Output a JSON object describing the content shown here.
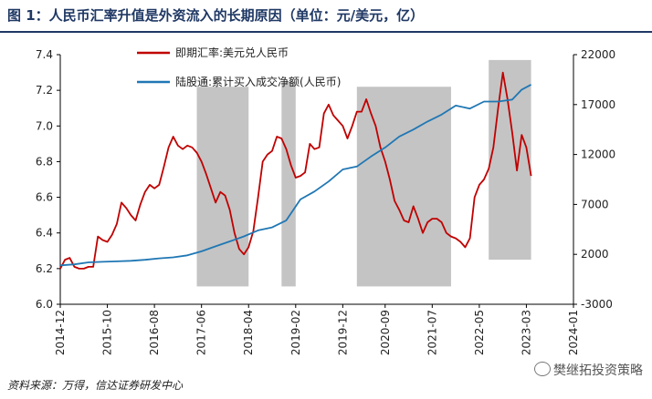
{
  "title": "图 1：人民币汇率升值是外资流入的长期原因（单位：元/美元，亿）",
  "source": "资料来源：万得，信达证券研发中心",
  "watermark": "樊继拓投资策略",
  "chart_data": {
    "type": "line",
    "title": "",
    "xlabel": "",
    "ylabel": "",
    "x_range": [
      "2014-12",
      "2024-01"
    ],
    "x_ticks": [
      "2014-12",
      "2015-10",
      "2016-08",
      "2017-06",
      "2018-04",
      "2019-02",
      "2019-12",
      "2020-09",
      "2021-07",
      "2022-05",
      "2023-03",
      "2024-01"
    ],
    "y_left": {
      "range": [
        6.0,
        7.4
      ],
      "ticks": [
        "6.0",
        "6.2",
        "6.4",
        "6.6",
        "6.8",
        "7.0",
        "7.2",
        "7.4"
      ]
    },
    "y_right": {
      "range": [
        -3000,
        22000
      ],
      "ticks": [
        "-3000",
        "2000",
        "7000",
        "12000",
        "17000",
        "22000"
      ]
    },
    "legend_position": "top-center",
    "grid": false,
    "shaded_periods": [
      {
        "start": "2017-05",
        "end": "2018-04",
        "y_low": 6.1,
        "y_high": 7.22
      },
      {
        "start": "2018-11",
        "end": "2019-02",
        "y_low": 6.1,
        "y_high": 7.25
      },
      {
        "start": "2020-03",
        "end": "2021-11",
        "y_low": 6.1,
        "y_high": 7.22
      },
      {
        "start": "2022-07",
        "end": "2023-04",
        "y_low": 6.25,
        "y_high": 7.37
      }
    ],
    "series": [
      {
        "name": "即期汇率:美元兑人民币",
        "axis": "left",
        "color": "#c00000",
        "points": [
          [
            "2014-12",
            6.2
          ],
          [
            "2015-01",
            6.25
          ],
          [
            "2015-02",
            6.26
          ],
          [
            "2015-03",
            6.21
          ],
          [
            "2015-04",
            6.2
          ],
          [
            "2015-05",
            6.2
          ],
          [
            "2015-06",
            6.21
          ],
          [
            "2015-07",
            6.21
          ],
          [
            "2015-08",
            6.38
          ],
          [
            "2015-09",
            6.36
          ],
          [
            "2015-10",
            6.35
          ],
          [
            "2015-11",
            6.39
          ],
          [
            "2015-12",
            6.45
          ],
          [
            "2016-01",
            6.57
          ],
          [
            "2016-02",
            6.54
          ],
          [
            "2016-03",
            6.5
          ],
          [
            "2016-04",
            6.47
          ],
          [
            "2016-05",
            6.56
          ],
          [
            "2016-06",
            6.63
          ],
          [
            "2016-07",
            6.67
          ],
          [
            "2016-08",
            6.65
          ],
          [
            "2016-09",
            6.67
          ],
          [
            "2016-10",
            6.77
          ],
          [
            "2016-11",
            6.88
          ],
          [
            "2016-12",
            6.94
          ],
          [
            "2017-01",
            6.89
          ],
          [
            "2017-02",
            6.87
          ],
          [
            "2017-03",
            6.89
          ],
          [
            "2017-04",
            6.88
          ],
          [
            "2017-05",
            6.85
          ],
          [
            "2017-06",
            6.8
          ],
          [
            "2017-07",
            6.73
          ],
          [
            "2017-08",
            6.65
          ],
          [
            "2017-09",
            6.57
          ],
          [
            "2017-10",
            6.63
          ],
          [
            "2017-11",
            6.61
          ],
          [
            "2017-12",
            6.53
          ],
          [
            "2018-01",
            6.4
          ],
          [
            "2018-02",
            6.31
          ],
          [
            "2018-03",
            6.28
          ],
          [
            "2018-04",
            6.32
          ],
          [
            "2018-05",
            6.41
          ],
          [
            "2018-06",
            6.6
          ],
          [
            "2018-07",
            6.8
          ],
          [
            "2018-08",
            6.84
          ],
          [
            "2018-09",
            6.86
          ],
          [
            "2018-10",
            6.94
          ],
          [
            "2018-11",
            6.93
          ],
          [
            "2018-12",
            6.87
          ],
          [
            "2019-01",
            6.78
          ],
          [
            "2019-02",
            6.71
          ],
          [
            "2019-03",
            6.72
          ],
          [
            "2019-04",
            6.74
          ],
          [
            "2019-05",
            6.9
          ],
          [
            "2019-06",
            6.87
          ],
          [
            "2019-07",
            6.88
          ],
          [
            "2019-08",
            7.07
          ],
          [
            "2019-09",
            7.12
          ],
          [
            "2019-10",
            7.06
          ],
          [
            "2019-11",
            7.03
          ],
          [
            "2019-12",
            7.0
          ],
          [
            "2020-01",
            6.93
          ],
          [
            "2020-02",
            7.0
          ],
          [
            "2020-03",
            7.08
          ],
          [
            "2020-04",
            7.08
          ],
          [
            "2020-05",
            7.15
          ],
          [
            "2020-06",
            7.07
          ],
          [
            "2020-07",
            7.0
          ],
          [
            "2020-08",
            6.88
          ],
          [
            "2020-09",
            6.8
          ],
          [
            "2020-10",
            6.7
          ],
          [
            "2020-11",
            6.58
          ],
          [
            "2020-12",
            6.53
          ],
          [
            "2021-01",
            6.47
          ],
          [
            "2021-02",
            6.46
          ],
          [
            "2021-03",
            6.55
          ],
          [
            "2021-04",
            6.48
          ],
          [
            "2021-05",
            6.4
          ],
          [
            "2021-06",
            6.46
          ],
          [
            "2021-07",
            6.48
          ],
          [
            "2021-08",
            6.48
          ],
          [
            "2021-09",
            6.46
          ],
          [
            "2021-10",
            6.4
          ],
          [
            "2021-11",
            6.38
          ],
          [
            "2021-12",
            6.37
          ],
          [
            "2022-01",
            6.35
          ],
          [
            "2022-02",
            6.32
          ],
          [
            "2022-03",
            6.37
          ],
          [
            "2022-04",
            6.6
          ],
          [
            "2022-05",
            6.67
          ],
          [
            "2022-06",
            6.7
          ],
          [
            "2022-07",
            6.76
          ],
          [
            "2022-08",
            6.88
          ],
          [
            "2022-09",
            7.1
          ],
          [
            "2022-10",
            7.3
          ],
          [
            "2022-11",
            7.15
          ],
          [
            "2022-12",
            6.96
          ],
          [
            "2023-01",
            6.75
          ],
          [
            "2023-02",
            6.95
          ],
          [
            "2023-03",
            6.88
          ],
          [
            "2023-04",
            6.72
          ]
        ]
      },
      {
        "name": "陆股通:累计买入成交净额(人民币)",
        "axis": "right",
        "color": "#1f77b4",
        "points": [
          [
            "2014-12",
            900
          ],
          [
            "2015-03",
            1000
          ],
          [
            "2015-06",
            1200
          ],
          [
            "2015-09",
            1250
          ],
          [
            "2015-12",
            1300
          ],
          [
            "2016-03",
            1350
          ],
          [
            "2016-06",
            1450
          ],
          [
            "2016-09",
            1600
          ],
          [
            "2016-12",
            1700
          ],
          [
            "2017-03",
            1900
          ],
          [
            "2017-06",
            2300
          ],
          [
            "2017-09",
            2800
          ],
          [
            "2017-12",
            3300
          ],
          [
            "2018-03",
            3800
          ],
          [
            "2018-06",
            4400
          ],
          [
            "2018-09",
            4700
          ],
          [
            "2018-12",
            5400
          ],
          [
            "2019-03",
            7500
          ],
          [
            "2019-06",
            8300
          ],
          [
            "2019-09",
            9300
          ],
          [
            "2019-12",
            10500
          ],
          [
            "2020-03",
            10800
          ],
          [
            "2020-06",
            11800
          ],
          [
            "2020-09",
            12700
          ],
          [
            "2020-12",
            13800
          ],
          [
            "2021-03",
            14500
          ],
          [
            "2021-06",
            15300
          ],
          [
            "2021-09",
            16000
          ],
          [
            "2021-12",
            16900
          ],
          [
            "2022-03",
            16600
          ],
          [
            "2022-06",
            17300
          ],
          [
            "2022-09",
            17300
          ],
          [
            "2022-12",
            17500
          ],
          [
            "2023-02",
            18500
          ],
          [
            "2023-04",
            19000
          ]
        ]
      }
    ]
  }
}
